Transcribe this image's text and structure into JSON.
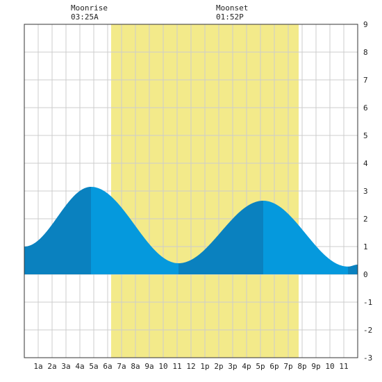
{
  "moon": {
    "rise_title": "Moonrise",
    "rise_time": "03:25A",
    "set_title": "Moonset",
    "set_time": "01:52P"
  },
  "colors": {
    "background": "#ffffff",
    "grid": "#cccccc",
    "daylight": "#f3ea8a",
    "tide_rising": "#0a81bf",
    "tide_falling": "#0599dd",
    "axis": "#333333"
  },
  "chart_data": {
    "type": "area",
    "title": "",
    "xlabel": "",
    "ylabel": "",
    "x_range": [
      0,
      24
    ],
    "ylim": [
      -3,
      9
    ],
    "yticks": [
      "-3",
      "-2",
      "-1",
      "0",
      "1",
      "2",
      "3",
      "4",
      "5",
      "6",
      "7",
      "8",
      "9"
    ],
    "xticks": [
      "1a",
      "2a",
      "3a",
      "4a",
      "5a",
      "6a",
      "7a",
      "8a",
      "9a",
      "10",
      "11",
      "12",
      "1p",
      "2p",
      "3p",
      "4p",
      "5p",
      "6p",
      "7p",
      "8p",
      "9p",
      "10",
      "11"
    ],
    "grid": true,
    "daylight": {
      "start": 6.25,
      "end": 19.75
    },
    "moonrise_hour": 3.42,
    "moonset_hour": 13.87,
    "extrema": [
      {
        "hour": 0.0,
        "value": 1.0
      },
      {
        "hour": 4.8,
        "value": 3.15
      },
      {
        "hour": 11.1,
        "value": 0.4
      },
      {
        "hour": 17.2,
        "value": 2.65
      },
      {
        "hour": 23.3,
        "value": 0.28
      },
      {
        "hour": 24.0,
        "value": 0.35
      }
    ]
  }
}
